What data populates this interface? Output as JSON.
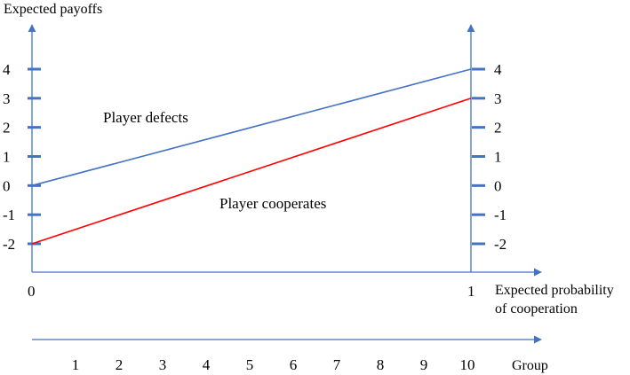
{
  "chart_data": {
    "type": "line",
    "ylabel": "Expected payoffs",
    "xlabel": "Expected probability of cooperation",
    "xlabel_lines": [
      "Expected probability",
      "of cooperation"
    ],
    "x": [
      0,
      1
    ],
    "x_tick_labels": [
      "0",
      "1"
    ],
    "ylim": [
      -2,
      4
    ],
    "y_ticks": [
      4,
      3,
      2,
      1,
      0,
      -1,
      -2
    ],
    "y_tick_labels": [
      "4",
      "3",
      "2",
      "1",
      "0",
      "-1",
      "-2"
    ],
    "series": [
      {
        "name": "Player defects",
        "values": [
          0,
          4
        ],
        "color": "#4472c4"
      },
      {
        "name": "Player cooperates",
        "values": [
          -2,
          3
        ],
        "color": "#ff0000"
      }
    ],
    "axis_color": "#4472c4",
    "grid": false,
    "secondary_axis": {
      "label": "Group",
      "tick_labels": [
        "1",
        "2",
        "3",
        "4",
        "5",
        "6",
        "7",
        "8",
        "9",
        "10"
      ]
    }
  }
}
